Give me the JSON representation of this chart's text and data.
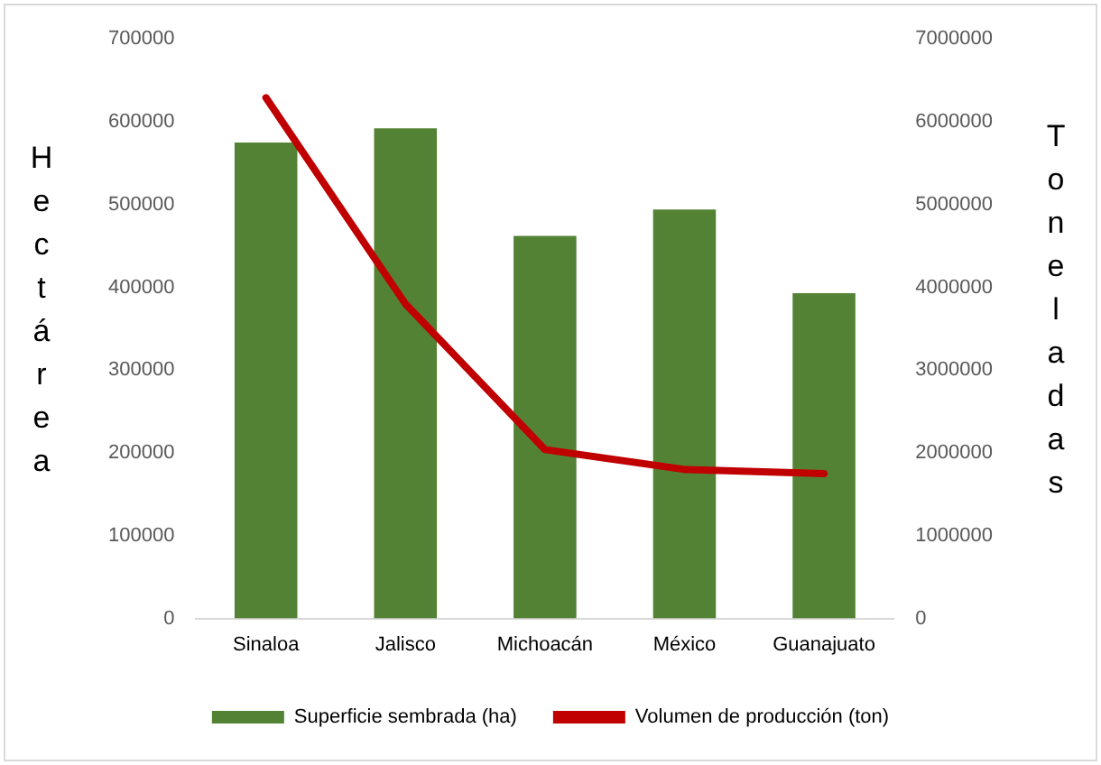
{
  "chart_data": {
    "type": "bar",
    "ylabel": "Hectárea",
    "y2label": "Toneladas",
    "categories": [
      "Sinaloa",
      "Jalisco",
      "Michoacán",
      "México",
      "Guanajuato"
    ],
    "series": [
      {
        "name": "Superficie sembrada (ha)",
        "color": "#548235",
        "values": [
          575000,
          592000,
          462000,
          494000,
          393000
        ]
      },
      {
        "name": "Volumen de producción (ton)",
        "type": "line",
        "axis": "y2",
        "color": "#c00000",
        "values": [
          6290000,
          3800000,
          2040000,
          1800000,
          1750000
        ]
      }
    ],
    "ylim": [
      0,
      700000
    ],
    "yticks": [
      0,
      100000,
      200000,
      300000,
      400000,
      500000,
      600000,
      700000
    ],
    "y2lim": [
      0,
      7000000
    ],
    "y2ticks": [
      0,
      1000000,
      2000000,
      3000000,
      4000000,
      5000000,
      6000000,
      7000000
    ],
    "grid": false,
    "legend": "bottom",
    "marker": "none"
  }
}
